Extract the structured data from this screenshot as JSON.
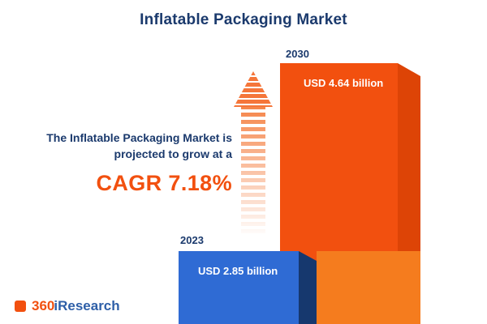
{
  "title": "Inflatable Packaging Market",
  "growth_text": {
    "line1": "The Inflatable Packaging Market is",
    "line2": "projected to grow at a",
    "cagr": "CAGR 7.18%"
  },
  "chart_data": {
    "type": "bar",
    "title": "Inflatable Packaging Market",
    "categories": [
      "2023",
      "2030"
    ],
    "values": [
      2.85,
      4.64
    ],
    "unit": "USD billion",
    "value_labels": [
      "USD 2.85 billion",
      "USD 4.64 billion"
    ],
    "cagr_percent": 7.18,
    "bar_colors": [
      "#2f6bd4",
      "#f2500f"
    ],
    "ylim": [
      0,
      5
    ],
    "legend": "none",
    "grid": false
  },
  "icons": {
    "up_arrow": "striped-up-arrow-icon"
  },
  "logo": {
    "prefix": "360",
    "suffix": "iResearch"
  },
  "colors": {
    "navy": "#1b3a6d",
    "orange": "#f2500f",
    "orange_side": "#dd4406",
    "orange_light": "#f57c1e",
    "blue": "#2f6bd4",
    "blue_side": "#16386e",
    "background": "#ffffff"
  }
}
